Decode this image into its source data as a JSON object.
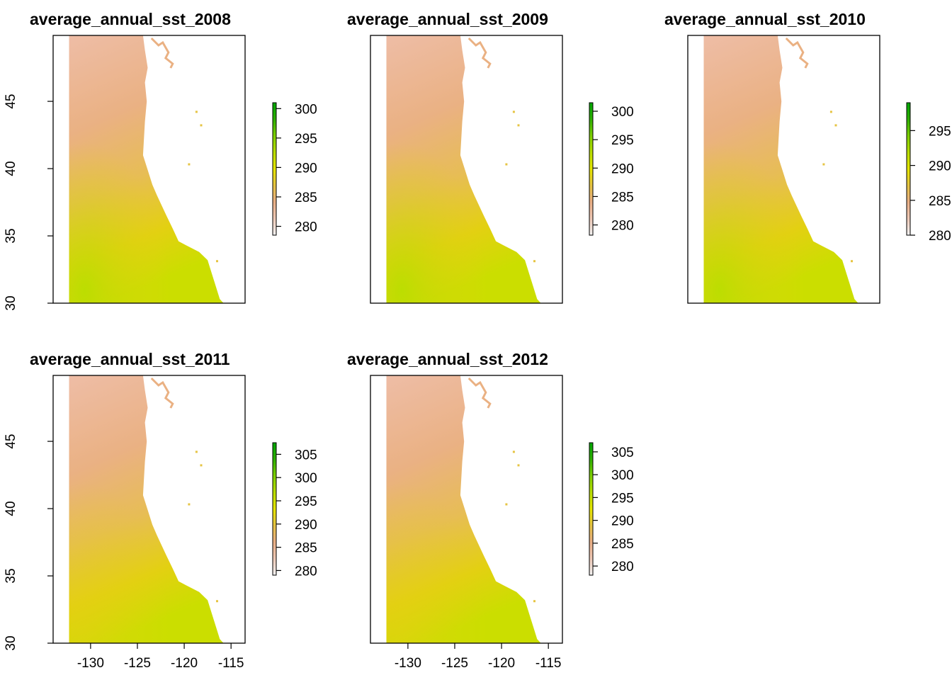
{
  "chart_data": [
    {
      "type": "heatmap",
      "title": "average_annual_sst_2008",
      "xlim": [
        -134,
        -113.5
      ],
      "ylim": [
        30,
        49.9
      ],
      "x_ticks": [
        "-130",
        "-125",
        "-120",
        "-115"
      ],
      "x_ticks_shown": false,
      "y_ticks": [
        "30",
        "35",
        "40",
        "45"
      ],
      "y_ticks_shown": true,
      "legend": {
        "ticks": [
          "280",
          "285",
          "290",
          "295",
          "300"
        ],
        "range": [
          278.5,
          301
        ],
        "clipped": false
      },
      "values": {
        "north_coast_min": 282,
        "south_offshore_max": 293
      }
    },
    {
      "type": "heatmap",
      "title": "average_annual_sst_2009",
      "xlim": [
        -134,
        -113.5
      ],
      "ylim": [
        30,
        49.9
      ],
      "x_ticks": [
        "-130",
        "-125",
        "-120",
        "-115"
      ],
      "x_ticks_shown": false,
      "y_ticks": [
        "30",
        "35",
        "40",
        "45"
      ],
      "y_ticks_shown": false,
      "legend": {
        "ticks": [
          "280",
          "285",
          "290",
          "295",
          "300"
        ],
        "range": [
          278.2,
          301.5
        ],
        "clipped": false
      },
      "values": {
        "north_coast_min": 283,
        "south_offshore_max": 293
      }
    },
    {
      "type": "heatmap",
      "title": "average_annual_sst_2010",
      "xlim": [
        -134,
        -113.5
      ],
      "ylim": [
        30,
        49.9
      ],
      "x_ticks": [
        "-130",
        "-125",
        "-120",
        "-115"
      ],
      "x_ticks_shown": false,
      "y_ticks": [
        "30",
        "35",
        "40",
        "45"
      ],
      "y_ticks_shown": false,
      "legend": {
        "ticks": [
          "280",
          "285",
          "290",
          "295"
        ],
        "tick_labels": [
          "280",
          "285",
          "290",
          "295"
        ],
        "range": [
          280,
          299
        ],
        "clipped": true
      },
      "values": {
        "north_coast_min": 282,
        "south_offshore_max": 292
      }
    },
    {
      "type": "heatmap",
      "title": "average_annual_sst_2011",
      "xlim": [
        -134,
        -113.5
      ],
      "ylim": [
        30,
        49.9
      ],
      "x_ticks": [
        "-130",
        "-125",
        "-120",
        "-115"
      ],
      "x_ticks_shown": true,
      "y_ticks": [
        "30",
        "35",
        "40",
        "45"
      ],
      "y_ticks_shown": true,
      "legend": {
        "ticks": [
          "280",
          "285",
          "290",
          "295",
          "300",
          "305"
        ],
        "range": [
          279,
          307.5
        ],
        "clipped": false
      },
      "values": {
        "north_coast_min": 282,
        "south_offshore_max": 289
      }
    },
    {
      "type": "heatmap",
      "title": "average_annual_sst_2012",
      "xlim": [
        -134,
        -113.5
      ],
      "ylim": [
        30,
        49.9
      ],
      "x_ticks": [
        "-130",
        "-125",
        "-120",
        "-115"
      ],
      "x_ticks_shown": true,
      "y_ticks": [
        "30",
        "35",
        "40",
        "45"
      ],
      "y_ticks_shown": false,
      "legend": {
        "ticks": [
          "280",
          "285",
          "290",
          "295",
          "300",
          "305"
        ],
        "range": [
          278,
          307
        ],
        "clipped": false
      },
      "values": {
        "north_coast_min": 283,
        "south_offshore_max": 290
      }
    }
  ],
  "colors": {
    "palette": [
      "#f2f2f2",
      "#eec9b7",
      "#eaaf86",
      "#e6c443",
      "#e6e600",
      "#b9de00",
      "#7ed000",
      "#2fb000",
      "#00a600"
    ],
    "axis": "#000000",
    "background": "#ffffff"
  }
}
